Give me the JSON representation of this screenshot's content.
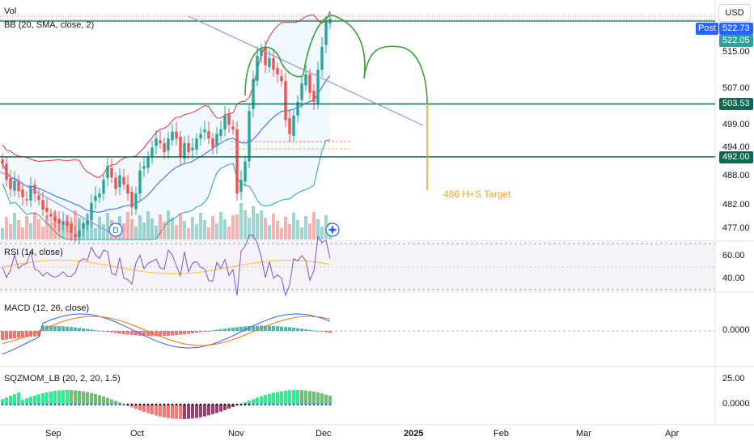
{
  "symbol_panel": {
    "volume_label": "Vol",
    "bb_label": "BB (20, SMA, close, 2)",
    "rsi_label": "RSI (14, close)",
    "macd_label": "MACD (12, 26, close)",
    "sqz_label": "SQZMOM_LB (20, 2, 20, 1.5)"
  },
  "currency": "USD",
  "post_badge": "Post",
  "price_tags": {
    "top": "522.73",
    "last": "522.05",
    "resistance": "503.53",
    "support": "492.00"
  },
  "annotation": "486 H+S Target",
  "events": {
    "dividend": "D"
  },
  "price_axis": [
    "515.00",
    "507.00",
    "499.00",
    "494.00",
    "488.00",
    "482.00",
    "477.00"
  ],
  "rsi_axis": [
    "60.00",
    "40.00"
  ],
  "macd_axis": [
    "0.0000"
  ],
  "sqz_axis": [
    "25.00",
    "0.0000"
  ],
  "time_axis": [
    "Sep",
    "Oct",
    "Nov",
    "Dec",
    "2025",
    "Feb",
    "Mar",
    "Apr"
  ],
  "colors": {
    "up": "#26a69a",
    "down": "#ef5350",
    "bb_upper": "#e0303f",
    "bb_basis": "#2962ff",
    "horizontal_level": "#0b6b52",
    "pattern": "#35a535",
    "target": "#f7a325",
    "trendline": "#9c90d9"
  },
  "chart_data": {
    "type": "candlestick",
    "levels": {
      "resistance": 503.53,
      "support": 492.0,
      "top": 522.73,
      "last": 522.05,
      "target": 486
    },
    "x_axis_months": [
      "Sep",
      "Oct",
      "Nov",
      "Dec",
      "2025",
      "Feb",
      "Mar",
      "Apr"
    ],
    "price_range": [
      472,
      526
    ],
    "close": [
      490.5,
      487,
      485,
      486.8,
      484.5,
      483.2,
      482.5,
      485.5,
      484,
      482.6,
      480.5,
      480,
      479,
      478,
      477.5,
      478,
      477,
      475.5,
      474.5,
      476,
      477.6,
      478.2,
      482,
      483.5,
      484,
      487,
      490,
      487.5,
      485,
      488,
      486,
      484,
      481,
      484,
      489,
      490,
      492,
      494,
      496,
      495,
      493,
      496,
      497.5,
      496,
      492,
      495,
      493,
      494,
      496,
      497,
      498,
      496,
      494,
      497,
      498,
      501,
      499,
      498,
      484,
      487,
      491,
      502,
      509,
      514,
      515.5,
      512,
      513.5,
      511,
      510,
      508.5,
      500,
      497,
      501,
      504,
      508,
      510,
      506,
      504,
      511,
      516,
      521.5,
      522.05
    ],
    "series": [
      {
        "name": "Vol",
        "kind": "volume"
      },
      {
        "name": "BB (20, SMA, close, 2)",
        "kind": "bands"
      },
      {
        "name": "RSI (14, close)",
        "kind": "oscillator",
        "ticks": [
          60,
          40
        ]
      },
      {
        "name": "MACD (12, 26, close)",
        "kind": "oscillator",
        "ticks": [
          0
        ]
      },
      {
        "name": "SQZMOM_LB (20, 2, 20, 1.5)",
        "kind": "histogram",
        "ticks": [
          25,
          0
        ]
      }
    ]
  }
}
